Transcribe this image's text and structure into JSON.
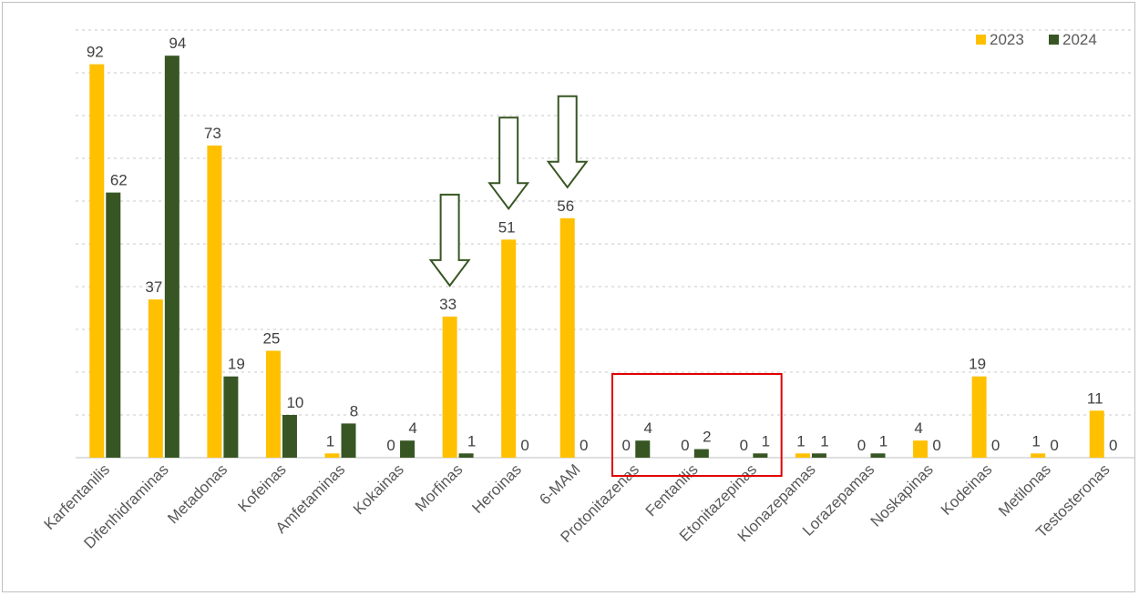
{
  "chart_data": {
    "type": "bar",
    "title": "",
    "xlabel": "",
    "ylabel": "",
    "ylim": [
      0,
      100
    ],
    "grid": true,
    "legend_position": "top-right",
    "categories": [
      "Karfentanilis",
      "Difenhidraminas",
      "Metadonas",
      "Kofeinas",
      "Amfetaminas",
      "Kokainas",
      "Morfinas",
      "Heroinas",
      "6-MAM",
      "Protonitazenas",
      "Fentanilis",
      "Etonitazepinas",
      "Klonazepamas",
      "Lorazepamas",
      "Noskapinas",
      "Kodeinas",
      "Metilonas",
      "Testosteronas"
    ],
    "series": [
      {
        "name": "2023",
        "color": "#FFC000",
        "values": [
          92,
          37,
          73,
          25,
          1,
          0,
          33,
          51,
          56,
          0,
          0,
          0,
          1,
          0,
          4,
          19,
          1,
          11
        ]
      },
      {
        "name": "2024",
        "color": "#375623",
        "values": [
          62,
          94,
          19,
          10,
          8,
          4,
          1,
          0,
          0,
          4,
          2,
          1,
          1,
          1,
          0,
          0,
          0,
          0
        ]
      }
    ],
    "annotations": {
      "down_arrows_over": [
        "Morfinas",
        "Heroinas",
        "6-MAM"
      ],
      "arrow_color": "#375623",
      "highlight_box_categories": [
        "Protonitazenas",
        "Fentanilis",
        "Etonitazepinas"
      ],
      "highlight_box_color": "#E00000"
    }
  }
}
